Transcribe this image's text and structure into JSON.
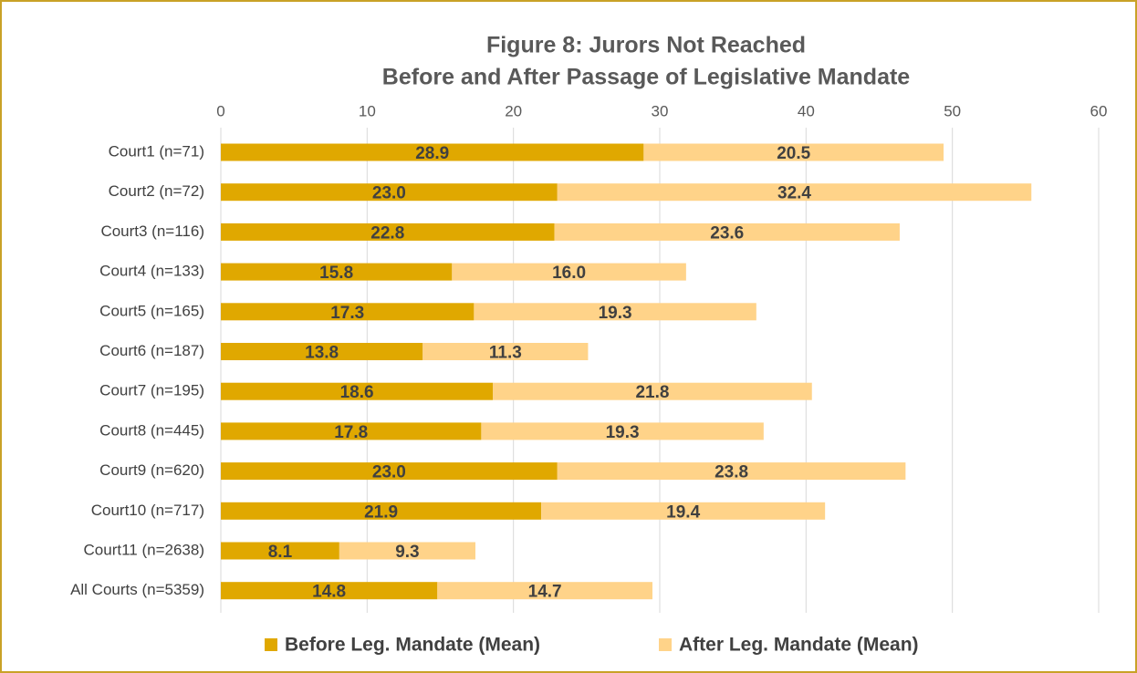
{
  "chart_data": {
    "type": "stacked_bar_horizontal",
    "title": "Figure 8:  Jurors Not Reached",
    "subtitle": "Before and After Passage of Legislative Mandate",
    "categories": [
      "Court1 (n=71)",
      "Court2 (n=72)",
      "Court3 (n=116)",
      "Court4 (n=133)",
      "Court5 (n=165)",
      "Court6 (n=187)",
      "Court7 (n=195)",
      "Court8 (n=445)",
      "Court9 (n=620)",
      "Court10 (n=717)",
      "Court11 (n=2638)",
      "All Courts (n=5359)"
    ],
    "series": [
      {
        "name": "Before Leg. Mandate (Mean)",
        "color": "#e0a800",
        "values": [
          28.9,
          23.0,
          22.8,
          15.8,
          17.3,
          13.8,
          18.6,
          17.8,
          23.0,
          21.9,
          8.1,
          14.8
        ],
        "value_labels": [
          "28.9",
          "23.0",
          "22.8",
          "15.8",
          "17.3",
          "13.8",
          "18.6",
          "17.8",
          "23.0",
          "21.9",
          "8.1",
          "14.8"
        ]
      },
      {
        "name": "After Leg. Mandate (Mean)",
        "color": "#ffd389",
        "values": [
          20.5,
          32.4,
          23.6,
          16.0,
          19.3,
          11.3,
          21.8,
          19.3,
          23.8,
          19.4,
          9.3,
          14.7
        ],
        "value_labels": [
          "20.5",
          "32.4",
          "23.6",
          "16.0",
          "19.3",
          "11.3",
          "21.8",
          "19.3",
          "23.8",
          "19.4",
          "9.3",
          "14.7"
        ]
      }
    ],
    "xlim": [
      0,
      60
    ],
    "xticks": [
      0,
      10,
      20,
      30,
      40,
      50,
      60
    ],
    "grid": true,
    "legend": "bottom"
  }
}
